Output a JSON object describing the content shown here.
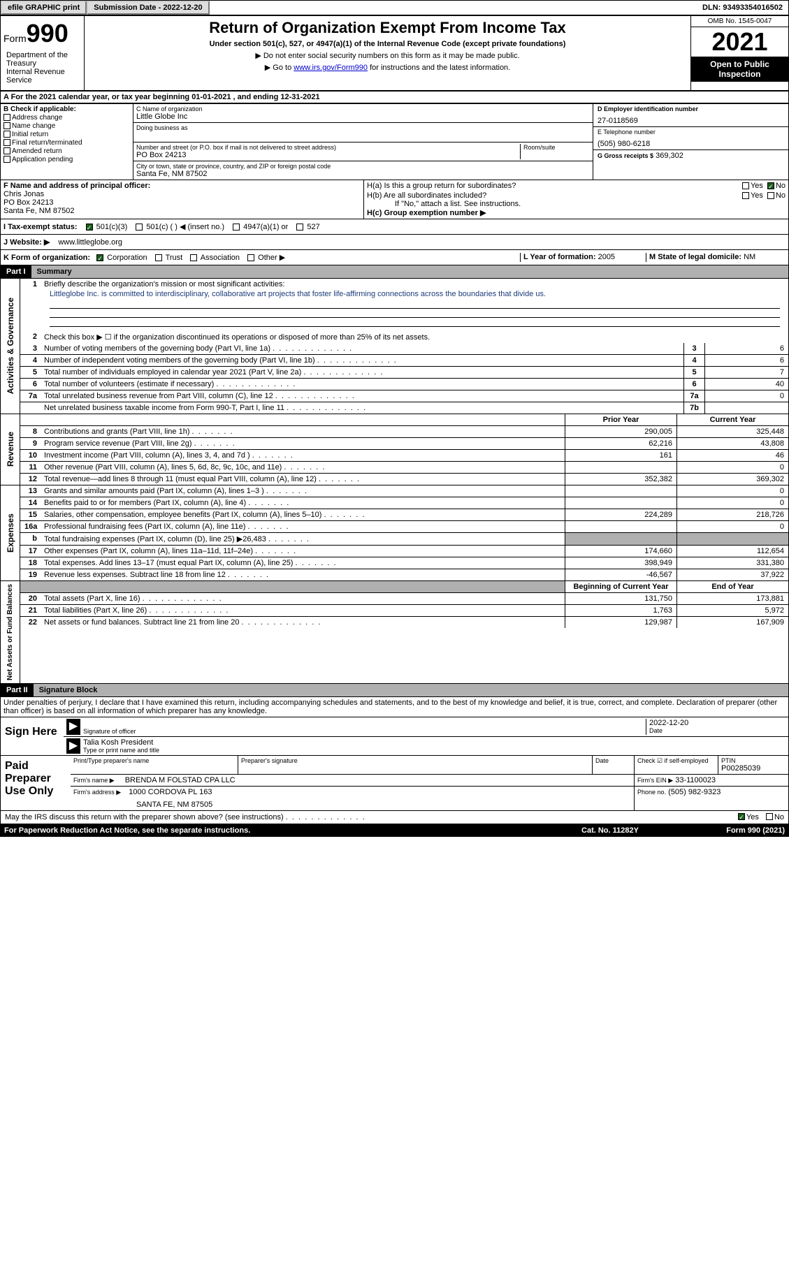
{
  "topbar": {
    "efile": "efile GRAPHIC print",
    "submission": "Submission Date - 2022-12-20",
    "dln": "DLN: 93493354016502"
  },
  "header": {
    "form_word": "Form",
    "form_num": "990",
    "dept": "Department of the Treasury\nInternal Revenue Service",
    "title": "Return of Organization Exempt From Income Tax",
    "subtitle": "Under section 501(c), 527, or 4947(a)(1) of the Internal Revenue Code (except private foundations)",
    "note1": "▶ Do not enter social security numbers on this form as it may be made public.",
    "note2_pre": "▶ Go to ",
    "note2_link": "www.irs.gov/Form990",
    "note2_post": " for instructions and the latest information.",
    "omb": "OMB No. 1545-0047",
    "year": "2021",
    "inspect": "Open to Public Inspection"
  },
  "period": "A For the 2021 calendar year, or tax year beginning 01-01-2021   , and ending 12-31-2021",
  "sectionB": {
    "label": "B Check if applicable:",
    "items": [
      "Address change",
      "Name change",
      "Initial return",
      "Final return/terminated",
      "Amended return",
      "Application pending"
    ]
  },
  "sectionC": {
    "name_label": "C Name of organization",
    "name": "Little Globe Inc",
    "dba_label": "Doing business as",
    "addr_label": "Number and street (or P.O. box if mail is not delivered to street address)",
    "room_label": "Room/suite",
    "addr": "PO Box 24213",
    "city_label": "City or town, state or province, country, and ZIP or foreign postal code",
    "city": "Santa Fe, NM  87502"
  },
  "sectionD": {
    "ein_label": "D Employer identification number",
    "ein": "27-0118569",
    "phone_label": "E Telephone number",
    "phone": "(505) 980-6218",
    "gross_label": "G Gross receipts $",
    "gross": "369,302"
  },
  "sectionF": {
    "label": "F  Name and address of principal officer:",
    "name": "Chris Jonas",
    "addr1": "PO Box 24213",
    "addr2": "Santa Fe, NM  87502"
  },
  "sectionH": {
    "a_label": "H(a)  Is this a group return for subordinates?",
    "b_label": "H(b)  Are all subordinates included?",
    "b_note": "If \"No,\" attach a list. See instructions.",
    "c_label": "H(c)  Group exemption number ▶",
    "yes": "Yes",
    "no": "No"
  },
  "sectionI": {
    "label": "I    Tax-exempt status:",
    "opt1": "501(c)(3)",
    "opt2": "501(c) (  ) ◀ (insert no.)",
    "opt3": "4947(a)(1) or",
    "opt4": "527"
  },
  "sectionJ": {
    "label": "J   Website: ▶",
    "val": "www.littleglobe.org"
  },
  "sectionK": {
    "label": "K Form of organization:",
    "opts": [
      "Corporation",
      "Trust",
      "Association",
      "Other ▶"
    ]
  },
  "sectionL": {
    "label": "L Year of formation:",
    "val": "2005"
  },
  "sectionM": {
    "label": "M State of legal domicile:",
    "val": "NM"
  },
  "part1_hdr": "Part I",
  "part1_title": "Summary",
  "part2_hdr": "Part II",
  "part2_title": "Signature Block",
  "side_labels": {
    "activities": "Activities & Governance",
    "revenue": "Revenue",
    "expenses": "Expenses",
    "netassets": "Net Assets or Fund Balances"
  },
  "summary": {
    "line1_label": "Briefly describe the organization's mission or most significant activities:",
    "line1_text": "Littleglobe Inc. is committed to interdisciplinary, collaborative art projects that foster life-affirming connections across the boundaries that divide us.",
    "line2": "Check this box ▶ ☐  if the organization discontinued its operations or disposed of more than 25% of its net assets.",
    "rows_gov": [
      {
        "n": "3",
        "t": "Number of voting members of the governing body (Part VI, line 1a)",
        "box": "3",
        "v": "6"
      },
      {
        "n": "4",
        "t": "Number of independent voting members of the governing body (Part VI, line 1b)",
        "box": "4",
        "v": "6"
      },
      {
        "n": "5",
        "t": "Total number of individuals employed in calendar year 2021 (Part V, line 2a)",
        "box": "5",
        "v": "7"
      },
      {
        "n": "6",
        "t": "Total number of volunteers (estimate if necessary)",
        "box": "6",
        "v": "40"
      },
      {
        "n": "7a",
        "t": "Total unrelated business revenue from Part VIII, column (C), line 12",
        "box": "7a",
        "v": "0"
      },
      {
        "n": "",
        "t": "Net unrelated business taxable income from Form 990-T, Part I, line 11",
        "box": "7b",
        "v": ""
      }
    ],
    "col_prior": "Prior Year",
    "col_current": "Current Year",
    "col_begin": "Beginning of Current Year",
    "col_end": "End of Year",
    "rows_rev": [
      {
        "n": "8",
        "t": "Contributions and grants (Part VIII, line 1h)",
        "p": "290,005",
        "c": "325,448"
      },
      {
        "n": "9",
        "t": "Program service revenue (Part VIII, line 2g)",
        "p": "62,216",
        "c": "43,808"
      },
      {
        "n": "10",
        "t": "Investment income (Part VIII, column (A), lines 3, 4, and 7d )",
        "p": "161",
        "c": "46"
      },
      {
        "n": "11",
        "t": "Other revenue (Part VIII, column (A), lines 5, 6d, 8c, 9c, 10c, and 11e)",
        "p": "",
        "c": "0"
      },
      {
        "n": "12",
        "t": "Total revenue—add lines 8 through 11 (must equal Part VIII, column (A), line 12)",
        "p": "352,382",
        "c": "369,302"
      }
    ],
    "rows_exp": [
      {
        "n": "13",
        "t": "Grants and similar amounts paid (Part IX, column (A), lines 1–3 )",
        "p": "",
        "c": "0"
      },
      {
        "n": "14",
        "t": "Benefits paid to or for members (Part IX, column (A), line 4)",
        "p": "",
        "c": "0"
      },
      {
        "n": "15",
        "t": "Salaries, other compensation, employee benefits (Part IX, column (A), lines 5–10)",
        "p": "224,289",
        "c": "218,726"
      },
      {
        "n": "16a",
        "t": "Professional fundraising fees (Part IX, column (A), line 11e)",
        "p": "",
        "c": "0"
      },
      {
        "n": "b",
        "t": "Total fundraising expenses (Part IX, column (D), line 25) ▶26,483",
        "p": "shaded",
        "c": "shaded"
      },
      {
        "n": "17",
        "t": "Other expenses (Part IX, column (A), lines 11a–11d, 11f–24e)",
        "p": "174,660",
        "c": "112,654"
      },
      {
        "n": "18",
        "t": "Total expenses. Add lines 13–17 (must equal Part IX, column (A), line 25)",
        "p": "398,949",
        "c": "331,380"
      },
      {
        "n": "19",
        "t": "Revenue less expenses. Subtract line 18 from line 12",
        "p": "-46,567",
        "c": "37,922"
      }
    ],
    "rows_net": [
      {
        "n": "20",
        "t": "Total assets (Part X, line 16)",
        "p": "131,750",
        "c": "173,881"
      },
      {
        "n": "21",
        "t": "Total liabilities (Part X, line 26)",
        "p": "1,763",
        "c": "5,972"
      },
      {
        "n": "22",
        "t": "Net assets or fund balances. Subtract line 21 from line 20",
        "p": "129,987",
        "c": "167,909"
      }
    ]
  },
  "sig": {
    "penalty": "Under penalties of perjury, I declare that I have examined this return, including accompanying schedules and statements, and to the best of my knowledge and belief, it is true, correct, and complete. Declaration of preparer (other than officer) is based on all information of which preparer has any knowledge.",
    "sign_here": "Sign Here",
    "sig_officer": "Signature of officer",
    "date_label": "Date",
    "date_val": "2022-12-20",
    "name_label": "Type or print name and title",
    "name_val": "Talia Kosh  President"
  },
  "prep": {
    "label": "Paid Preparer Use Only",
    "print_label": "Print/Type preparer's name",
    "sig_label": "Preparer's signature",
    "date_label": "Date",
    "check_label": "Check ☑ if self-employed",
    "ptin_label": "PTIN",
    "ptin": "P00285039",
    "firm_name_label": "Firm's name   ▶",
    "firm_name": "BRENDA M FOLSTAD CPA LLC",
    "firm_ein_label": "Firm's EIN ▶",
    "firm_ein": "33-1100023",
    "firm_addr_label": "Firm's address ▶",
    "firm_addr1": "1000 CORDOVA PL 163",
    "firm_addr2": "SANTA FE, NM  87505",
    "phone_label": "Phone no.",
    "phone": "(505) 982-9323"
  },
  "bottom": {
    "discuss": "May the IRS discuss this return with the preparer shown above? (see instructions)",
    "yes": "Yes",
    "no": "No"
  },
  "footer": {
    "left": "For Paperwork Reduction Act Notice, see the separate instructions.",
    "mid": "Cat. No. 11282Y",
    "right": "Form 990 (2021)"
  },
  "colors": {
    "link": "#0000cc",
    "text_blue": "#1a3a7a",
    "checked_bg": "#1a5c1a",
    "shaded": "#b0b0b0",
    "black": "#000000",
    "white": "#ffffff"
  }
}
